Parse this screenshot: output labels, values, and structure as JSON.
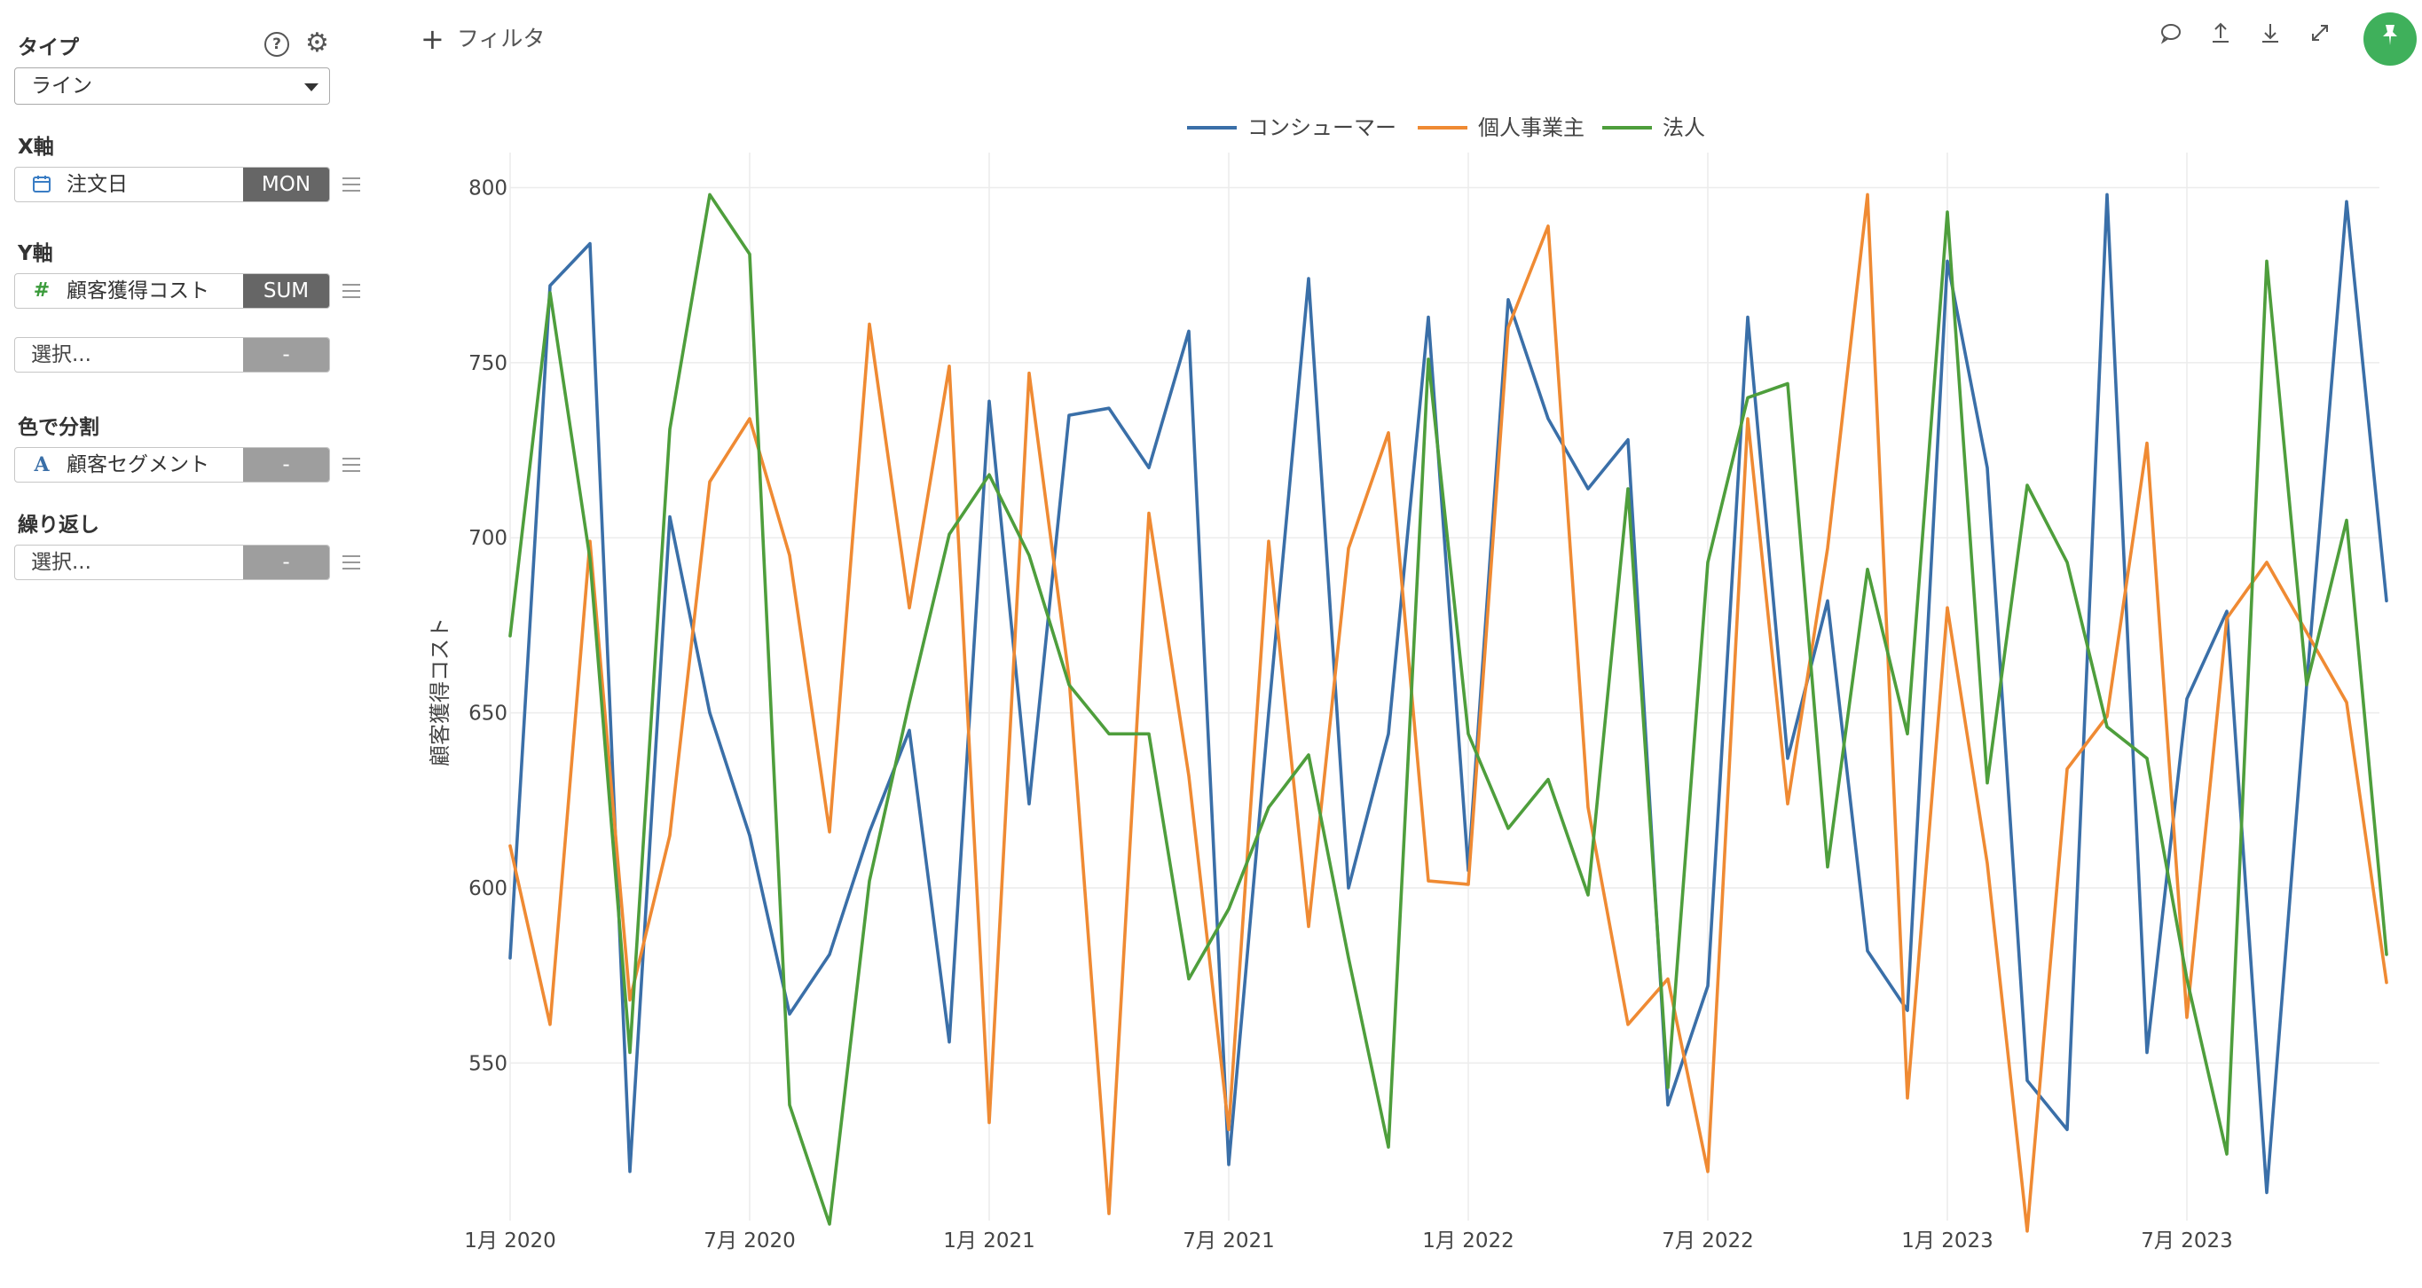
{
  "panel": {
    "type_label": "タイプ",
    "type_value": "ライン",
    "x_label": "X軸",
    "x_field": "注文日",
    "x_agg": "MON",
    "y_label": "Y軸",
    "y_field": "顧客獲得コスト",
    "y_agg": "SUM",
    "y2_placeholder": "選択...",
    "y2_agg": "-",
    "color_label": "色で分割",
    "color_field": "顧客セグメント",
    "color_agg": "-",
    "repeat_label": "繰り返し",
    "repeat_placeholder": "選択...",
    "repeat_agg": "-"
  },
  "toolbar": {
    "filter_label": "フィルタ"
  },
  "colors": {
    "blue": "#3a6fa8",
    "orange": "#ef8a33",
    "green": "#4e9e3c",
    "accent_green": "#3fb05b"
  },
  "chart_data": {
    "type": "line",
    "ylabel": "顧客獲得コスト",
    "ylim": [
      505,
      810
    ],
    "yticks": [
      550,
      600,
      650,
      700,
      750,
      800
    ],
    "x_tick_labels": [
      "1月 2020",
      "7月 2020",
      "1月 2021",
      "7月 2021",
      "1月 2022",
      "7月 2022",
      "1月 2023",
      "7月 2023"
    ],
    "x_tick_index": [
      0,
      6,
      12,
      18,
      24,
      30,
      36,
      42
    ],
    "legend_position": "top-center",
    "x": [
      "2020-01",
      "2020-02",
      "2020-03",
      "2020-04",
      "2020-05",
      "2020-06",
      "2020-07",
      "2020-08",
      "2020-09",
      "2020-10",
      "2020-11",
      "2020-12",
      "2021-01",
      "2021-02",
      "2021-03",
      "2021-04",
      "2021-05",
      "2021-06",
      "2021-07",
      "2021-08",
      "2021-09",
      "2021-10",
      "2021-11",
      "2021-12",
      "2022-01",
      "2022-02",
      "2022-03",
      "2022-04",
      "2022-05",
      "2022-06",
      "2022-07",
      "2022-08",
      "2022-09",
      "2022-10",
      "2022-11",
      "2022-12",
      "2023-01",
      "2023-02",
      "2023-03",
      "2023-04",
      "2023-05",
      "2023-06",
      "2023-07",
      "2023-08",
      "2023-09",
      "2023-10",
      "2023-11",
      "2023-12"
    ],
    "series": [
      {
        "name": "コンシューマー",
        "color": "#3a6fa8",
        "values": [
          580,
          772,
          784,
          519,
          706,
          650,
          615,
          564,
          581,
          616,
          645,
          556,
          739,
          624,
          735,
          737,
          720,
          759,
          521,
          650,
          774,
          600,
          644,
          763,
          605,
          768,
          734,
          714,
          728,
          538,
          572,
          763,
          637,
          682,
          582,
          565,
          779,
          720,
          545,
          531,
          798,
          553,
          654,
          679,
          513,
          658,
          796,
          682
        ]
      },
      {
        "name": "個人事業主",
        "color": "#ef8a33",
        "values": [
          612,
          561,
          699,
          568,
          615,
          716,
          734,
          695,
          616,
          761,
          680,
          749,
          533,
          747,
          660,
          507,
          707,
          632,
          531,
          699,
          589,
          697,
          730,
          602,
          601,
          760,
          789,
          623,
          561,
          574,
          519,
          734,
          624,
          697,
          798,
          540,
          680,
          607,
          502,
          634,
          649,
          727,
          563,
          677,
          693,
          673,
          653,
          573
        ]
      },
      {
        "name": "法人",
        "color": "#4e9e3c",
        "values": [
          672,
          770,
          694,
          553,
          731,
          798,
          781,
          538,
          504,
          602,
          653,
          701,
          718,
          695,
          658,
          644,
          644,
          574,
          594,
          623,
          638,
          580,
          526,
          751,
          644,
          617,
          631,
          598,
          714,
          543,
          693,
          740,
          744,
          606,
          691,
          644,
          793,
          630,
          715,
          693,
          646,
          637,
          574,
          524,
          779,
          658,
          705,
          581
        ]
      }
    ]
  }
}
